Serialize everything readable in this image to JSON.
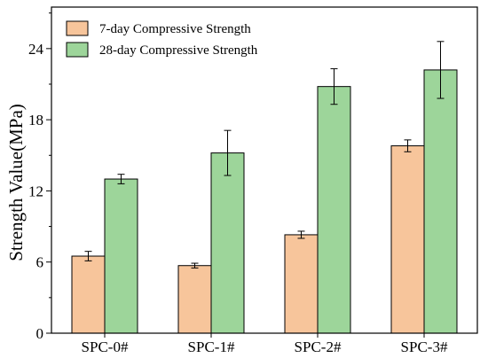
{
  "chart_data": {
    "type": "bar",
    "title": "",
    "xlabel": "",
    "ylabel": "Strength Value(MPa)",
    "ylim": [
      0,
      27.5
    ],
    "yticks": [
      0,
      6,
      12,
      18,
      24
    ],
    "grid": false,
    "legend_position": "top-left",
    "categories": [
      "SPC-0#",
      "SPC-1#",
      "SPC-2#",
      "SPC-3#"
    ],
    "series": [
      {
        "name": "7-day Compressive Strength",
        "color": "#f7c59b",
        "values": [
          6.5,
          5.7,
          8.3,
          15.8
        ],
        "errors": [
          0.4,
          0.2,
          0.3,
          0.5
        ]
      },
      {
        "name": "28-day Compressive Strength",
        "color": "#9dd59a",
        "values": [
          13.0,
          15.2,
          20.8,
          22.2
        ],
        "errors": [
          0.4,
          1.9,
          1.5,
          2.4
        ]
      }
    ]
  }
}
